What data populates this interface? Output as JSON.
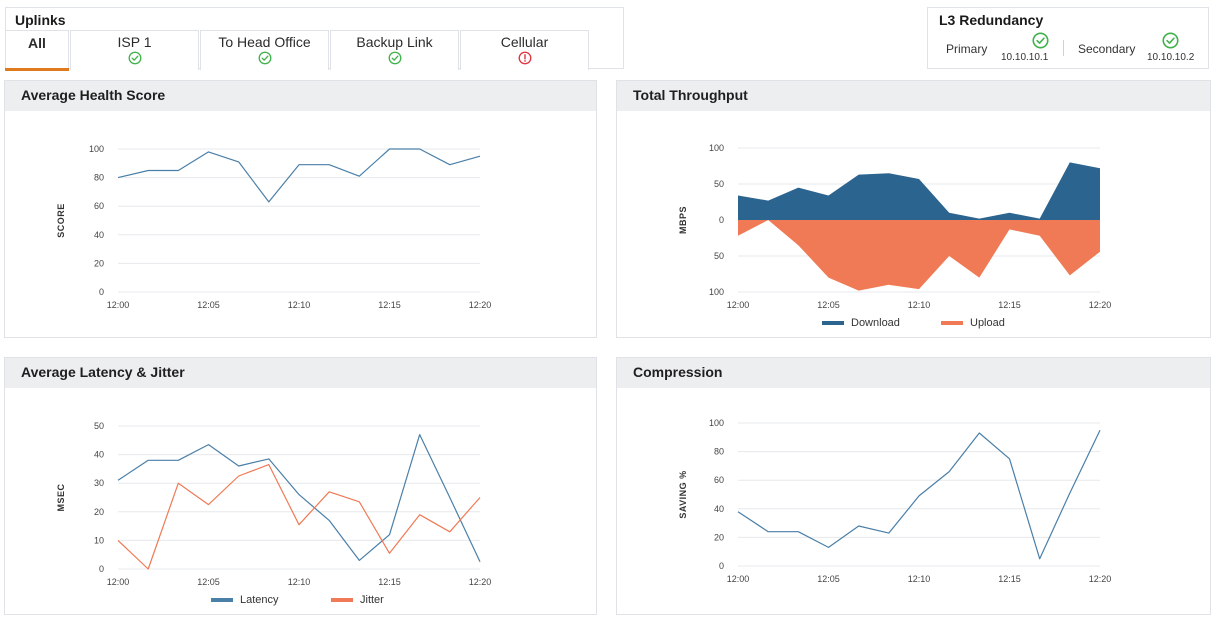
{
  "uplinks": {
    "title": "Uplinks",
    "tabs": [
      {
        "label": "All",
        "status": null,
        "active": true
      },
      {
        "label": "ISP 1",
        "status": "ok"
      },
      {
        "label": "To Head Office",
        "status": "ok"
      },
      {
        "label": "Backup Link",
        "status": "ok"
      },
      {
        "label": "Cellular",
        "status": "error"
      }
    ]
  },
  "l3": {
    "title": "L3 Redundancy",
    "primary": {
      "label": "Primary",
      "ip": "10.10.10.1",
      "status": "ok"
    },
    "secondary": {
      "label": "Secondary",
      "ip": "10.10.10.2",
      "status": "ok"
    }
  },
  "colors": {
    "ok": "#3fb14a",
    "error": "#e0323c",
    "accent": "#e07a1f",
    "line": "#4a7fa8",
    "download": "#2c6490",
    "upload": "#ef7a55",
    "latency": "#4a7fa8",
    "jitter": "#ef7a55"
  },
  "icons": {
    "ok": "check-circle-icon",
    "error": "exclamation-circle-icon"
  },
  "panels": {
    "health": {
      "title": "Average Health Score"
    },
    "throughput": {
      "title": "Total Throughput"
    },
    "latency": {
      "title": "Average Latency & Jitter"
    },
    "compression": {
      "title": "Compression"
    }
  },
  "chart_data": [
    {
      "id": "health",
      "type": "line",
      "ylabel": "SCORE",
      "x": [
        "12:00",
        "12:01",
        "12:03",
        "12:05",
        "12:07",
        "12:08",
        "12:10",
        "12:12",
        "12:13",
        "12:15",
        "12:17",
        "12:18",
        "12:20"
      ],
      "xticks": [
        "12:00",
        "12:05",
        "12:10",
        "12:15",
        "12:20"
      ],
      "yticks": [
        0,
        20,
        40,
        60,
        80,
        100
      ],
      "ylim": [
        0,
        100
      ],
      "grid": true,
      "series": [
        {
          "values": [
            80,
            85,
            85,
            98,
            91,
            63,
            89,
            89,
            81,
            100,
            100,
            89,
            95
          ]
        }
      ]
    },
    {
      "id": "throughput",
      "type": "area",
      "ylabel": "MBPS",
      "x": [
        "12:00",
        "12:01",
        "12:03",
        "12:05",
        "12:07",
        "12:08",
        "12:10",
        "12:12",
        "12:13",
        "12:15",
        "12:17",
        "12:18",
        "12:20"
      ],
      "xticks": [
        "12:00",
        "12:05",
        "12:10",
        "12:15",
        "12:20"
      ],
      "yticks_labels": [
        "100",
        "50",
        "0",
        "50",
        "100"
      ],
      "ylim": [
        -100,
        100
      ],
      "grid": true,
      "legend": "bottom",
      "series": [
        {
          "name": "Download",
          "values": [
            34,
            27,
            45,
            34,
            63,
            65,
            57,
            10,
            2,
            10,
            2,
            80,
            72
          ]
        },
        {
          "name": "Upload",
          "values": [
            -22,
            0,
            -35,
            -80,
            -98,
            -90,
            -96,
            -50,
            -80,
            -13,
            -22,
            -77,
            -44
          ]
        }
      ]
    },
    {
      "id": "latency",
      "type": "line",
      "ylabel": "MSEC",
      "x": [
        "12:00",
        "12:01",
        "12:03",
        "12:05",
        "12:07",
        "12:08",
        "12:10",
        "12:12",
        "12:13",
        "12:15",
        "12:17",
        "12:18",
        "12:20"
      ],
      "xticks": [
        "12:00",
        "12:05",
        "12:10",
        "12:15",
        "12:20"
      ],
      "yticks": [
        0,
        10,
        20,
        30,
        40,
        50
      ],
      "ylim": [
        0,
        50
      ],
      "grid": true,
      "legend": "bottom",
      "series": [
        {
          "name": "Latency",
          "values": [
            31,
            38,
            38,
            43.5,
            36,
            38.5,
            26,
            17,
            3,
            12,
            47,
            25,
            2.5
          ]
        },
        {
          "name": "Jitter",
          "values": [
            10,
            0,
            30,
            22.5,
            32.5,
            36.5,
            15.5,
            27,
            23.5,
            5.5,
            19,
            13,
            25
          ]
        }
      ]
    },
    {
      "id": "compression",
      "type": "line",
      "ylabel": "SAVING %",
      "x": [
        "12:00",
        "12:01",
        "12:03",
        "12:05",
        "12:07",
        "12:08",
        "12:10",
        "12:12",
        "12:13",
        "12:15",
        "12:17",
        "12:18",
        "12:20"
      ],
      "xticks": [
        "12:00",
        "12:05",
        "12:10",
        "12:15",
        "12:20"
      ],
      "yticks": [
        0,
        20,
        40,
        60,
        80,
        100
      ],
      "ylim": [
        0,
        100
      ],
      "grid": true,
      "series": [
        {
          "values": [
            38,
            24,
            24,
            13,
            28,
            23,
            49,
            66,
            93,
            75,
            5,
            51,
            95
          ]
        }
      ]
    }
  ]
}
